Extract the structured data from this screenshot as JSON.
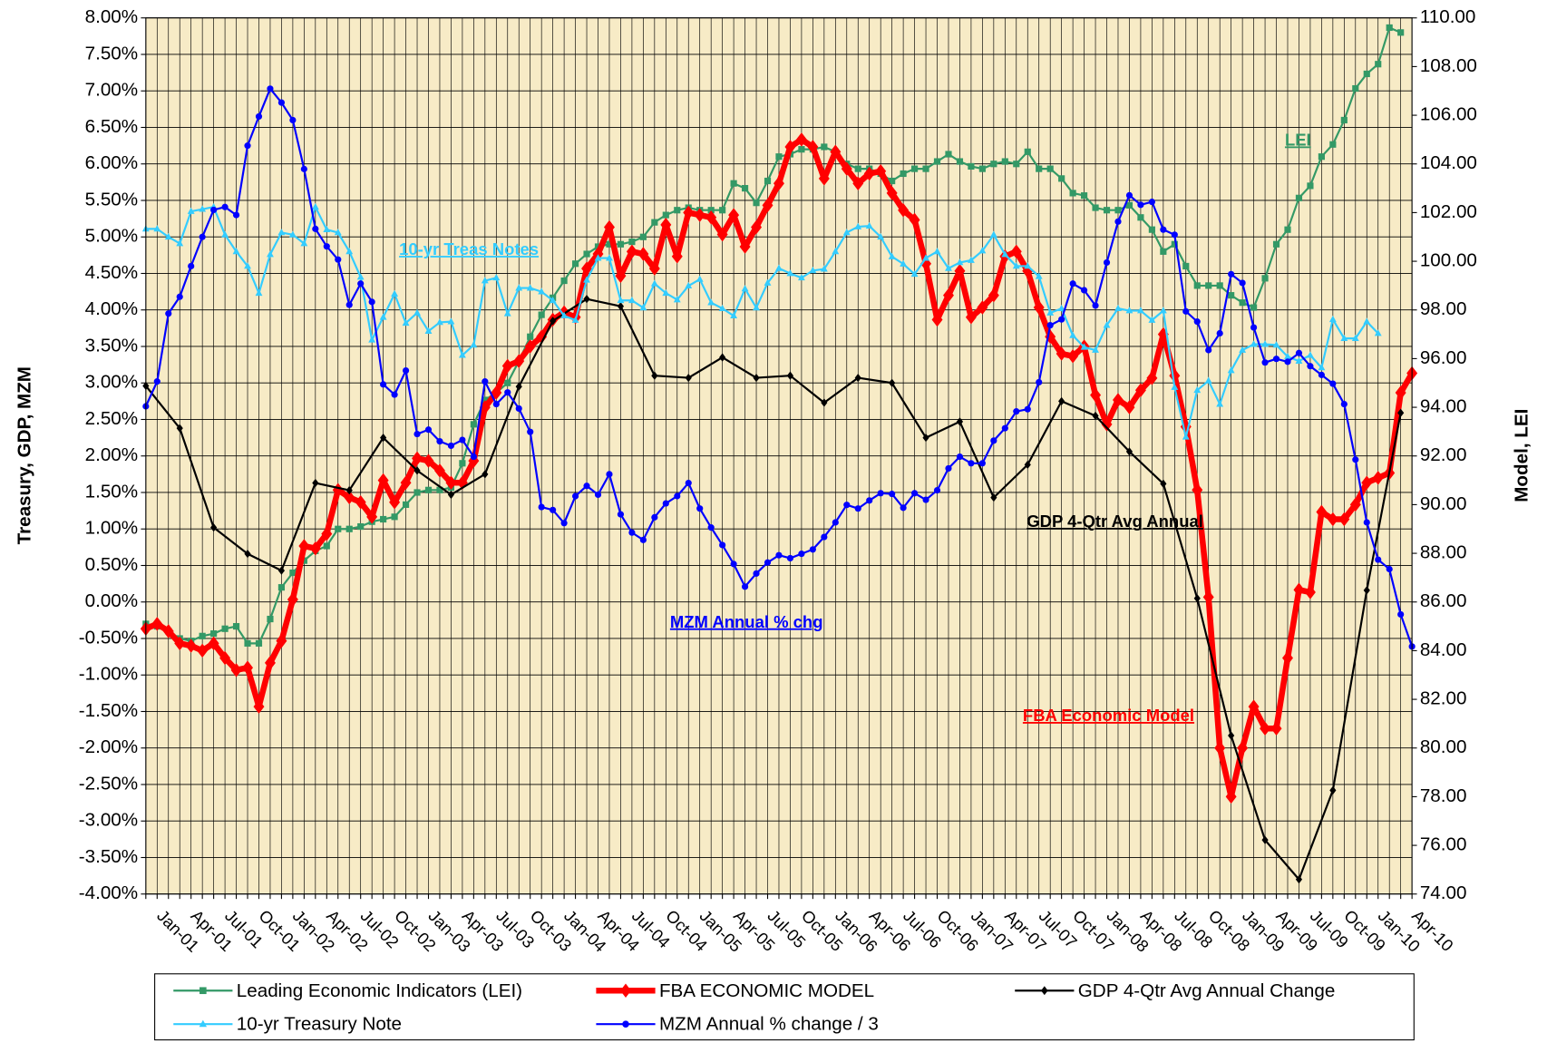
{
  "chart_data": {
    "type": "line",
    "y_label": "Treasury, GDP, MZM",
    "y2_label": "Model, LEI",
    "grid": true,
    "background": "#f7ebc6",
    "ylim": [
      -4,
      8
    ],
    "yticks": [
      {
        "value": -4,
        "label": "-4.00%"
      },
      {
        "value": -3.5,
        "label": "-3.50%"
      },
      {
        "value": -3,
        "label": "-3.00%"
      },
      {
        "value": -2.5,
        "label": "-2.50%"
      },
      {
        "value": -2,
        "label": "-2.00%"
      },
      {
        "value": -1.5,
        "label": "-1.50%"
      },
      {
        "value": -1,
        "label": "-1.00%"
      },
      {
        "value": -0.5,
        "label": "-0.50%"
      },
      {
        "value": 0,
        "label": "0.00%"
      },
      {
        "value": 0.5,
        "label": "0.50%"
      },
      {
        "value": 1,
        "label": "1.00%"
      },
      {
        "value": 1.5,
        "label": "1.50%"
      },
      {
        "value": 2,
        "label": "2.00%"
      },
      {
        "value": 2.5,
        "label": "2.50%"
      },
      {
        "value": 3,
        "label": "3.00%"
      },
      {
        "value": 3.5,
        "label": "3.50%"
      },
      {
        "value": 4,
        "label": "4.00%"
      },
      {
        "value": 4.5,
        "label": "4.50%"
      },
      {
        "value": 5,
        "label": "5.00%"
      },
      {
        "value": 5.5,
        "label": "5.50%"
      },
      {
        "value": 6,
        "label": "6.00%"
      },
      {
        "value": 6.5,
        "label": "6.50%"
      },
      {
        "value": 7,
        "label": "7.00%"
      },
      {
        "value": 7.5,
        "label": "7.50%"
      },
      {
        "value": 8,
        "label": "8.00%"
      }
    ],
    "y2lim": [
      74,
      110
    ],
    "y2ticks": [
      {
        "value": 74,
        "label": "74.00"
      },
      {
        "value": 76,
        "label": "76.00"
      },
      {
        "value": 78,
        "label": "78.00"
      },
      {
        "value": 80,
        "label": "80.00"
      },
      {
        "value": 82,
        "label": "82.00"
      },
      {
        "value": 84,
        "label": "84.00"
      },
      {
        "value": 86,
        "label": "86.00"
      },
      {
        "value": 88,
        "label": "88.00"
      },
      {
        "value": 90,
        "label": "90.00"
      },
      {
        "value": 92,
        "label": "92.00"
      },
      {
        "value": 94,
        "label": "94.00"
      },
      {
        "value": 96,
        "label": "96.00"
      },
      {
        "value": 98,
        "label": "98.00"
      },
      {
        "value": 100,
        "label": "100.00"
      },
      {
        "value": 102,
        "label": "102.00"
      },
      {
        "value": 104,
        "label": "104.00"
      },
      {
        "value": 106,
        "label": "106.00"
      },
      {
        "value": 108,
        "label": "108.00"
      },
      {
        "value": 110,
        "label": "110.00"
      }
    ],
    "categories": [
      null,
      "Jan-01",
      null,
      null,
      "Apr-01",
      null,
      null,
      "Jul-01",
      null,
      null,
      "Oct-01",
      null,
      null,
      "Jan-02",
      null,
      null,
      "Apr-02",
      null,
      null,
      "Jul-02",
      null,
      null,
      "Oct-02",
      null,
      null,
      "Jan-03",
      null,
      null,
      "Apr-03",
      null,
      null,
      "Jul-03",
      null,
      null,
      "Oct-03",
      null,
      null,
      "Jan-04",
      null,
      null,
      "Apr-04",
      null,
      null,
      "Jul-04",
      null,
      null,
      "Oct-04",
      null,
      null,
      "Jan-05",
      null,
      null,
      "Apr-05",
      null,
      null,
      "Jul-05",
      null,
      null,
      "Oct-05",
      null,
      null,
      "Jan-06",
      null,
      null,
      "Apr-06",
      null,
      null,
      "Jul-06",
      null,
      null,
      "Oct-06",
      null,
      null,
      "Jan-07",
      null,
      null,
      "Apr-07",
      null,
      null,
      "Jul-07",
      null,
      null,
      "Oct-07",
      null,
      null,
      "Jan-08",
      null,
      null,
      "Apr-08",
      null,
      null,
      "Jul-08",
      null,
      null,
      "Oct-08",
      null,
      null,
      "Jan-09",
      null,
      null,
      "Apr-09",
      null,
      null,
      "Jul-09",
      null,
      null,
      "Oct-09",
      null,
      null,
      "Jan-10",
      null,
      null,
      "Apr-10"
    ],
    "series": [
      {
        "name": "Leading Economic Indicators (LEI)",
        "color": "#339966",
        "axis": "y2",
        "marker": "square",
        "line_width": 2,
        "values": [
          85.1,
          85.0,
          84.8,
          84.5,
          84.4,
          84.6,
          84.7,
          84.9,
          85.0,
          84.3,
          84.3,
          85.3,
          86.6,
          87.2,
          87.7,
          88.1,
          88.3,
          89.0,
          89.0,
          89.1,
          89.3,
          89.4,
          89.5,
          90.0,
          90.5,
          90.6,
          90.6,
          90.7,
          91.7,
          93.3,
          94.3,
          94.6,
          95.0,
          95.9,
          96.9,
          97.8,
          98.5,
          99.2,
          99.9,
          100.3,
          100.6,
          100.7,
          100.7,
          100.8,
          101.0,
          101.6,
          101.9,
          102.1,
          102.2,
          102.1,
          102.1,
          102.1,
          103.2,
          103.0,
          102.4,
          103.3,
          104.3,
          104.4,
          104.6,
          104.6,
          104.7,
          104.5,
          104.0,
          103.8,
          103.8,
          103.6,
          103.3,
          103.6,
          103.8,
          103.8,
          104.1,
          104.4,
          104.1,
          103.9,
          103.8,
          104.0,
          104.1,
          104.0,
          104.5,
          103.8,
          103.8,
          103.4,
          102.8,
          102.7,
          102.2,
          102.1,
          102.1,
          102.3,
          101.8,
          101.3,
          100.4,
          100.7,
          99.8,
          99.0,
          99.0,
          99.0,
          98.6,
          98.3,
          98.1,
          99.3,
          100.7,
          101.3,
          102.6,
          103.1,
          104.3,
          104.8,
          105.8,
          107.1,
          107.7,
          108.1,
          109.6,
          109.4,
          null
        ]
      },
      {
        "name": "FBA ECONOMIC MODEL",
        "color": "#ff0000",
        "axis": "y2",
        "marker": "diamond",
        "line_width": 6,
        "values": [
          84.9,
          85.1,
          84.8,
          84.3,
          84.2,
          84.0,
          84.3,
          83.7,
          83.2,
          83.3,
          81.7,
          83.5,
          84.4,
          86.1,
          88.3,
          88.2,
          88.8,
          90.6,
          90.3,
          90.1,
          89.5,
          91.0,
          90.1,
          90.9,
          91.9,
          91.8,
          91.4,
          90.9,
          90.9,
          91.8,
          94.0,
          94.6,
          95.7,
          95.9,
          96.5,
          96.9,
          97.6,
          97.9,
          97.7,
          99.7,
          100.3,
          101.4,
          99.4,
          100.4,
          100.3,
          99.7,
          101.5,
          100.2,
          102.0,
          101.9,
          101.8,
          101.1,
          101.9,
          100.6,
          101.4,
          102.3,
          103.2,
          104.7,
          105.0,
          104.7,
          103.4,
          104.5,
          103.8,
          103.2,
          103.6,
          103.7,
          102.8,
          102.1,
          101.7,
          99.9,
          97.6,
          98.6,
          99.6,
          97.7,
          98.1,
          98.6,
          100.2,
          100.4,
          99.6,
          98.1,
          96.9,
          96.2,
          96.1,
          96.5,
          94.5,
          93.3,
          94.3,
          94.0,
          94.7,
          95.2,
          97.0,
          95.3,
          93.2,
          90.6,
          86.2,
          80.0,
          78.0,
          80.0,
          81.7,
          80.8,
          80.8,
          83.7,
          86.5,
          86.4,
          89.7,
          89.4,
          89.4,
          90.0,
          90.9,
          91.1,
          91.3,
          94.6,
          95.4
        ]
      },
      {
        "name": "GDP 4-Qtr Avg Annual Change",
        "color": "#000000",
        "axis": "y",
        "marker": "diamond",
        "line_width": 2,
        "connect_gaps": true,
        "values": [
          2.96,
          null,
          null,
          2.38,
          null,
          null,
          1.02,
          null,
          null,
          0.66,
          null,
          null,
          0.43,
          null,
          null,
          1.63,
          null,
          null,
          1.53,
          null,
          null,
          2.25,
          null,
          null,
          1.8,
          null,
          null,
          1.47,
          null,
          null,
          1.75,
          null,
          null,
          2.95,
          null,
          null,
          3.85,
          null,
          null,
          4.15,
          null,
          null,
          4.05,
          null,
          null,
          3.1,
          null,
          null,
          3.07,
          null,
          null,
          3.35,
          null,
          null,
          3.07,
          null,
          null,
          3.1,
          null,
          null,
          2.73,
          null,
          null,
          3.07,
          null,
          null,
          3.0,
          null,
          null,
          2.25,
          null,
          null,
          2.47,
          null,
          null,
          1.43,
          null,
          null,
          1.88,
          null,
          null,
          2.75,
          null,
          null,
          2.55,
          null,
          null,
          2.06,
          null,
          null,
          1.62,
          null,
          null,
          0.05,
          null,
          null,
          -1.83,
          null,
          null,
          -3.26,
          null,
          null,
          -3.8,
          null,
          null,
          -2.58,
          null,
          null,
          0.16,
          null,
          null,
          2.59,
          null
        ]
      },
      {
        "name": "10-yr Treasury Note",
        "color": "#33ccff",
        "axis": "y",
        "marker": "triangle",
        "line_width": 2,
        "values": [
          5.11,
          5.11,
          5.0,
          4.91,
          5.35,
          5.38,
          5.41,
          5.03,
          4.8,
          4.6,
          4.23,
          4.76,
          5.06,
          5.03,
          4.91,
          5.41,
          5.1,
          5.06,
          4.8,
          4.45,
          3.59,
          3.9,
          4.22,
          3.82,
          3.96,
          3.71,
          3.83,
          3.84,
          3.38,
          3.52,
          4.4,
          4.44,
          3.95,
          4.3,
          4.3,
          4.25,
          4.13,
          3.92,
          3.86,
          4.41,
          4.71,
          4.71,
          4.13,
          4.13,
          4.03,
          4.36,
          4.23,
          4.14,
          4.33,
          4.42,
          4.1,
          4.02,
          3.92,
          4.29,
          4.03,
          4.37,
          4.57,
          4.5,
          4.44,
          4.54,
          4.56,
          4.8,
          5.06,
          5.14,
          5.15,
          5.0,
          4.73,
          4.63,
          4.49,
          4.71,
          4.8,
          4.57,
          4.65,
          4.68,
          4.81,
          5.03,
          4.76,
          4.6,
          4.6,
          4.46,
          3.96,
          4.02,
          3.65,
          3.49,
          3.45,
          3.79,
          4.02,
          3.99,
          3.99,
          3.86,
          3.99,
          2.94,
          2.26,
          2.9,
          3.03,
          2.71,
          3.17,
          3.45,
          3.53,
          3.53,
          3.52,
          3.36,
          3.3,
          3.38,
          3.21,
          3.87,
          3.61,
          3.61,
          3.84,
          3.68,
          null,
          null,
          null
        ]
      },
      {
        "name": "MZM Annual % change / 3",
        "color": "#0000ff",
        "axis": "y",
        "marker": "circle",
        "line_width": 2,
        "values": [
          2.68,
          3.02,
          3.95,
          4.18,
          4.6,
          5.0,
          5.37,
          5.41,
          5.3,
          6.25,
          6.65,
          7.03,
          6.84,
          6.6,
          5.93,
          5.11,
          4.87,
          4.69,
          4.07,
          4.36,
          4.11,
          2.98,
          2.84,
          3.17,
          2.3,
          2.36,
          2.2,
          2.14,
          2.22,
          1.99,
          3.02,
          2.71,
          2.87,
          2.65,
          2.33,
          1.3,
          1.26,
          1.08,
          1.45,
          1.59,
          1.47,
          1.75,
          1.2,
          0.95,
          0.85,
          1.16,
          1.35,
          1.45,
          1.63,
          1.28,
          1.02,
          0.78,
          0.52,
          0.21,
          0.39,
          0.54,
          0.64,
          0.6,
          0.66,
          0.72,
          0.89,
          1.09,
          1.33,
          1.28,
          1.39,
          1.49,
          1.48,
          1.29,
          1.49,
          1.4,
          1.53,
          1.83,
          1.99,
          1.9,
          1.9,
          2.21,
          2.38,
          2.61,
          2.64,
          3.01,
          3.79,
          3.87,
          4.36,
          4.27,
          4.06,
          4.65,
          5.21,
          5.57,
          5.44,
          5.48,
          5.1,
          5.03,
          3.98,
          3.84,
          3.45,
          3.68,
          4.49,
          4.37,
          3.76,
          3.28,
          3.33,
          3.29,
          3.41,
          3.23,
          3.11,
          2.99,
          2.71,
          1.95,
          1.09,
          0.58,
          0.45,
          -0.17,
          -0.61
        ]
      }
    ],
    "annotations": [
      "10-yr Treas Notes",
      "LEI",
      "GDP 4-Qtr Avg Annual",
      "MZM Annual % chg",
      "FBA Economic Model"
    ]
  }
}
